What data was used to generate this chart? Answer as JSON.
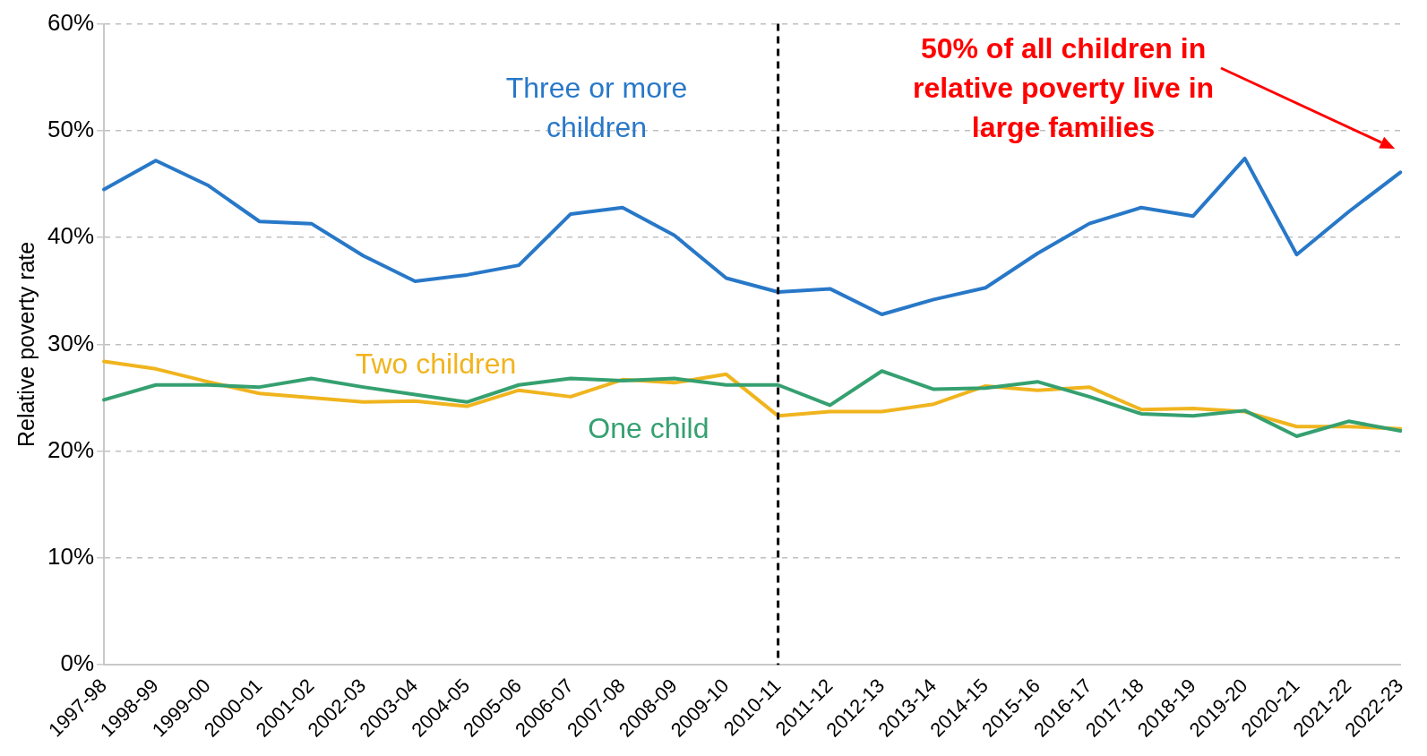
{
  "chart_data": {
    "type": "line",
    "ylabel": "Relative poverty rate",
    "categories": [
      "1997-98",
      "1998-99",
      "1999-00",
      "2000-01",
      "2001-02",
      "2002-03",
      "2003-04",
      "2004-05",
      "2005-06",
      "2006-07",
      "2007-08",
      "2008-09",
      "2009-10",
      "2010-11",
      "2011-12",
      "2012-13",
      "2013-14",
      "2014-15",
      "2015-16",
      "2016-17",
      "2017-18",
      "2018-19",
      "2019-20",
      "2020-21",
      "2021-22",
      "2022-23"
    ],
    "series": [
      {
        "name": "Three or more children",
        "color": "#2878c8",
        "values": [
          44.5,
          47.2,
          44.9,
          41.5,
          41.3,
          38.3,
          35.9,
          36.5,
          37.4,
          42.2,
          42.8,
          40.2,
          36.2,
          34.9,
          35.2,
          32.8,
          34.2,
          35.3,
          38.5,
          41.3,
          42.8,
          42.0,
          47.4,
          38.4,
          42.4,
          46.1
        ]
      },
      {
        "name": "One child",
        "color": "#35a070",
        "values": [
          24.8,
          26.2,
          26.2,
          26.0,
          26.8,
          26.0,
          25.3,
          24.6,
          26.2,
          26.8,
          26.6,
          26.8,
          26.2,
          26.2,
          24.3,
          27.5,
          25.8,
          25.9,
          26.5,
          25.1,
          23.5,
          23.3,
          23.8,
          21.4,
          22.8,
          21.9
        ]
      },
      {
        "name": "Two children",
        "color": "#f0b41e",
        "values": [
          28.4,
          27.7,
          26.5,
          25.4,
          25.0,
          24.6,
          24.7,
          24.2,
          25.7,
          25.1,
          26.7,
          26.4,
          27.2,
          23.3,
          23.7,
          23.7,
          24.4,
          26.1,
          25.7,
          26.0,
          23.9,
          24.0,
          23.7,
          22.3,
          22.3,
          22.1
        ]
      }
    ],
    "ylim": [
      0,
      60
    ],
    "yticks": [
      {
        "value": 0,
        "label": "0%"
      },
      {
        "value": 10,
        "label": "10%"
      },
      {
        "value": 20,
        "label": "20%"
      },
      {
        "value": 30,
        "label": "30%"
      },
      {
        "value": 40,
        "label": "40%"
      },
      {
        "value": 50,
        "label": "50%"
      },
      {
        "value": 60,
        "label": "60%"
      }
    ],
    "grid": "y",
    "legend": false,
    "marker": "none",
    "line_style": "solid",
    "ref_lines": [
      {
        "axis": "x",
        "value": "2010-11",
        "color": "#000000",
        "line_style": "dashed"
      }
    ],
    "annotations": [
      "50% of all children in relative poverty live in large families"
    ]
  }
}
